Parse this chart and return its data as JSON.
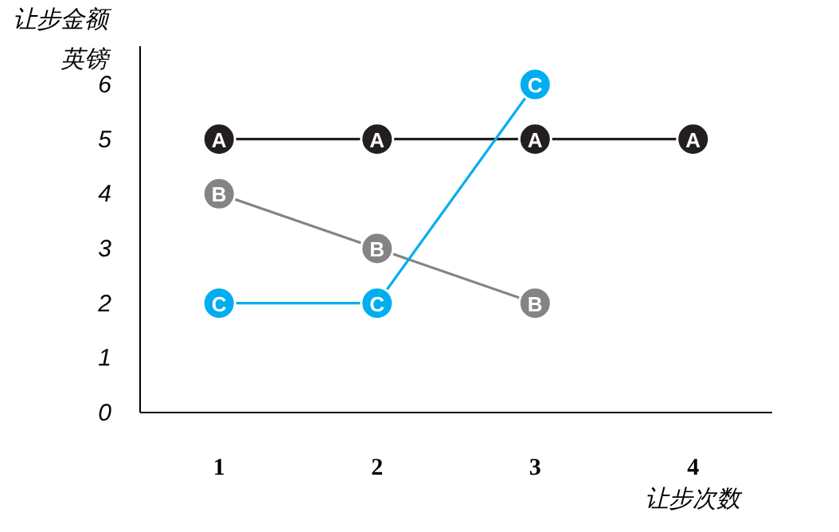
{
  "chart_data": {
    "type": "line",
    "categories": [
      "1",
      "2",
      "3",
      "4"
    ],
    "series": [
      {
        "name": "A",
        "color": "#231f20",
        "values": [
          5,
          5,
          5,
          5
        ]
      },
      {
        "name": "B",
        "color": "#848484",
        "values": [
          4,
          3,
          2,
          null
        ]
      },
      {
        "name": "C",
        "color": "#00aeef",
        "values": [
          2,
          2,
          6,
          null
        ]
      }
    ],
    "ylim": [
      0,
      6.7
    ],
    "yticks": [
      0,
      1,
      2,
      3,
      4,
      5,
      6
    ],
    "marker": "circle",
    "xlabel": "让步次数",
    "ylabel": "让步金额",
    "annotations": [
      "英镑"
    ]
  }
}
